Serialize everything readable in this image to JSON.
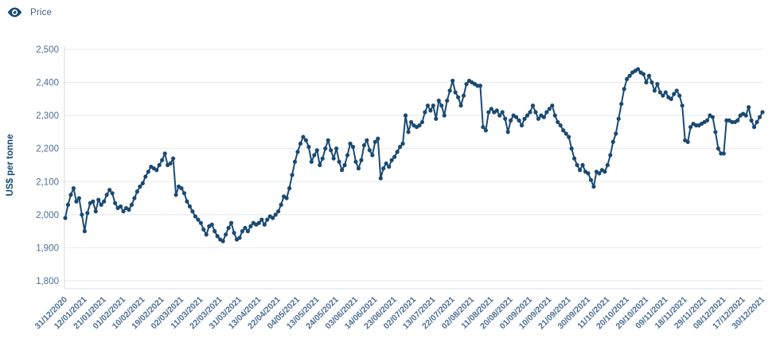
{
  "legend": {
    "label": "Price",
    "icon": "eye-icon",
    "series_color": "#1A4A73"
  },
  "colors": {
    "line": "#1A4A73",
    "marker": "#1A4A73",
    "tick_text": "#4D6E95",
    "axis_title_text": "#1A4A73",
    "legend_text": "#41607E",
    "gridline": "#E4E8EC",
    "axis_line": "#D4DCE2",
    "background": "#FFFFFF"
  },
  "chart_data": {
    "type": "line",
    "title": "",
    "xlabel": "",
    "ylabel": "US$ per tonne",
    "ylim": [
      1800,
      2500
    ],
    "y_ticks": [
      2500,
      2400,
      2300,
      2200,
      2100,
      2000,
      1900,
      1800
    ],
    "y_tick_labels": [
      "2,500",
      "2,400",
      "2,300",
      "2,200",
      "2,100",
      "2,000",
      "1,900",
      "1,800"
    ],
    "grid": "horizontal",
    "marker": "circle",
    "legend_position": "top-left",
    "frequency": "business-daily, one point per day, x tick label every 7th point",
    "x_tick_labels": [
      "31/12/2020",
      "12/01/2021",
      "21/01/2021",
      "01/02/2021",
      "10/02/2021",
      "19/02/2021",
      "02/03/2021",
      "11/03/2021",
      "22/03/2021",
      "31/03/2021",
      "13/04/2021",
      "22/04/2021",
      "04/05/2021",
      "13/05/2021",
      "24/05/2021",
      "03/06/2021",
      "14/06/2021",
      "23/06/2021",
      "02/07/2021",
      "13/07/2021",
      "22/07/2021",
      "02/08/2021",
      "11/08/2021",
      "20/08/2021",
      "01/09/2021",
      "10/09/2021",
      "21/09/2021",
      "30/09/2021",
      "11/10/2021",
      "20/10/2021",
      "29/10/2021",
      "09/11/2021",
      "18/11/2021",
      "29/11/2021",
      "08/12/2021",
      "17/12/2021",
      "30/12/2021"
    ],
    "points_per_tick": 7,
    "series": [
      {
        "name": "Price",
        "color": "#1A4A73",
        "values": [
          1990,
          2030,
          2060,
          2080,
          2040,
          2050,
          2000,
          1950,
          2005,
          2035,
          2040,
          2010,
          2045,
          2030,
          2040,
          2060,
          2075,
          2065,
          2035,
          2020,
          2025,
          2010,
          2020,
          2015,
          2030,
          2050,
          2070,
          2085,
          2095,
          2115,
          2130,
          2145,
          2140,
          2135,
          2150,
          2165,
          2185,
          2150,
          2155,
          2170,
          2060,
          2085,
          2080,
          2065,
          2040,
          2025,
          2010,
          1995,
          1985,
          1975,
          1955,
          1940,
          1965,
          1970,
          1950,
          1935,
          1925,
          1920,
          1940,
          1960,
          1975,
          1945,
          1925,
          1930,
          1950,
          1960,
          1950,
          1965,
          1975,
          1970,
          1975,
          1985,
          1970,
          1985,
          1995,
          1990,
          2000,
          2010,
          2030,
          2055,
          2050,
          2080,
          2120,
          2160,
          2190,
          2215,
          2235,
          2225,
          2205,
          2160,
          2180,
          2195,
          2150,
          2170,
          2200,
          2225,
          2195,
          2170,
          2200,
          2160,
          2135,
          2150,
          2180,
          2215,
          2205,
          2160,
          2140,
          2165,
          2210,
          2225,
          2195,
          2180,
          2220,
          2230,
          2110,
          2140,
          2155,
          2145,
          2165,
          2175,
          2190,
          2205,
          2215,
          2300,
          2250,
          2280,
          2270,
          2265,
          2270,
          2280,
          2310,
          2330,
          2315,
          2330,
          2290,
          2345,
          2330,
          2300,
          2345,
          2375,
          2405,
          2370,
          2355,
          2330,
          2360,
          2395,
          2405,
          2400,
          2395,
          2390,
          2390,
          2265,
          2255,
          2310,
          2320,
          2310,
          2315,
          2300,
          2310,
          2290,
          2250,
          2285,
          2300,
          2295,
          2285,
          2270,
          2290,
          2300,
          2310,
          2330,
          2310,
          2290,
          2300,
          2295,
          2310,
          2320,
          2330,
          2300,
          2280,
          2270,
          2255,
          2245,
          2235,
          2200,
          2170,
          2150,
          2135,
          2150,
          2130,
          2125,
          2105,
          2085,
          2130,
          2125,
          2135,
          2130,
          2150,
          2180,
          2220,
          2245,
          2290,
          2335,
          2380,
          2410,
          2420,
          2430,
          2435,
          2440,
          2430,
          2425,
          2400,
          2420,
          2400,
          2375,
          2395,
          2370,
          2360,
          2370,
          2355,
          2350,
          2365,
          2375,
          2360,
          2330,
          2225,
          2220,
          2265,
          2275,
          2270,
          2270,
          2275,
          2280,
          2285,
          2300,
          2295,
          2250,
          2200,
          2185,
          2185,
          2285,
          2285,
          2280,
          2280,
          2285,
          2300,
          2305,
          2300,
          2325,
          2285,
          2265,
          2280,
          2295,
          2310
        ]
      }
    ]
  }
}
